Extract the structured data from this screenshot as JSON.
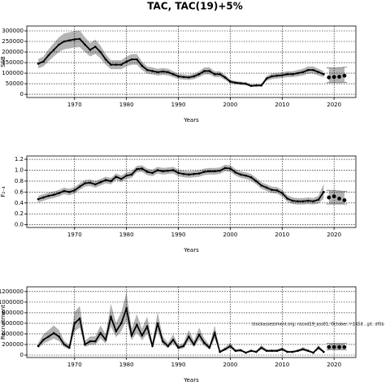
{
  "chart_data": [
    {
      "type": "line",
      "title": "TAC, TAC(19)+5%",
      "xlabel": "Years",
      "ylabel": "SSB",
      "grid": true,
      "xlim": [
        1960.8,
        2024.2
      ],
      "xticks": [
        1970,
        1980,
        1990,
        2000,
        2010,
        2020
      ],
      "ylim": [
        -15000,
        323000
      ],
      "yticks": [
        0,
        50000,
        100000,
        150000,
        200000,
        250000,
        300000
      ],
      "x": [
        1963,
        1964,
        1965,
        1966,
        1967,
        1968,
        1969,
        1970,
        1971,
        1972,
        1973,
        1974,
        1975,
        1976,
        1977,
        1978,
        1979,
        1980,
        1981,
        1982,
        1983,
        1984,
        1985,
        1986,
        1987,
        1988,
        1989,
        1990,
        1991,
        1992,
        1993,
        1994,
        1995,
        1996,
        1997,
        1998,
        1999,
        2000,
        2001,
        2002,
        2003,
        2004,
        2005,
        2006,
        2007,
        2008,
        2009,
        2010,
        2011,
        2012,
        2013,
        2014,
        2015,
        2016,
        2017,
        2018
      ],
      "values": [
        145000,
        155000,
        185000,
        210000,
        235000,
        250000,
        255000,
        260000,
        262000,
        235000,
        210000,
        225000,
        200000,
        165000,
        140000,
        140000,
        140000,
        155000,
        165000,
        165000,
        135000,
        115000,
        110000,
        105000,
        108000,
        105000,
        95000,
        85000,
        82000,
        80000,
        85000,
        95000,
        110000,
        110000,
        95000,
        95000,
        80000,
        60000,
        55000,
        52000,
        50000,
        40000,
        42000,
        42000,
        75000,
        85000,
        88000,
        90000,
        95000,
        95000,
        100000,
        105000,
        115000,
        115000,
        105000,
        95000
      ],
      "lower": [
        123000,
        132000,
        157000,
        179000,
        200000,
        213000,
        217000,
        221000,
        223000,
        200000,
        179000,
        191000,
        170000,
        140000,
        119000,
        119000,
        119000,
        132000,
        140000,
        140000,
        115000,
        98000,
        94000,
        89000,
        92000,
        89000,
        81000,
        72000,
        70000,
        68000,
        72000,
        81000,
        94000,
        94000,
        81000,
        81000,
        68000,
        51000,
        47000,
        44000,
        43000,
        34000,
        36000,
        36000,
        64000,
        72000,
        75000,
        77000,
        81000,
        81000,
        85000,
        89000,
        98000,
        98000,
        89000,
        81000
      ],
      "upper": [
        167000,
        178000,
        213000,
        242000,
        270000,
        288000,
        293000,
        299000,
        301000,
        270000,
        242000,
        259000,
        230000,
        190000,
        161000,
        161000,
        161000,
        178000,
        190000,
        190000,
        155000,
        132000,
        127000,
        121000,
        124000,
        121000,
        109000,
        98000,
        94000,
        92000,
        98000,
        109000,
        127000,
        127000,
        109000,
        109000,
        92000,
        69000,
        63000,
        60000,
        58000,
        46000,
        48000,
        48000,
        86000,
        98000,
        101000,
        104000,
        109000,
        109000,
        115000,
        121000,
        132000,
        132000,
        121000,
        109000
      ],
      "forecast": {
        "x": [
          2019,
          2020,
          2021,
          2022
        ],
        "values": [
          80000,
          82000,
          83000,
          88000
        ],
        "lower": [
          55000,
          55000,
          55000,
          56000
        ],
        "upper": [
          125000,
          125000,
          126000,
          128000
        ]
      }
    },
    {
      "type": "line",
      "xlabel": "Years",
      "ylabel": "F₂₋₄",
      "grid": true,
      "xlim": [
        1960.8,
        2024.2
      ],
      "xticks": [
        1970,
        1980,
        1990,
        2000,
        2010,
        2020
      ],
      "ylim": [
        -0.05,
        1.26
      ],
      "yticks": [
        {
          "value": 0,
          "label": "0.0"
        },
        0.2,
        0.4,
        0.6,
        0.8,
        {
          "value": 1,
          "label": "1.0"
        },
        1.2
      ],
      "x": [
        1963,
        1964,
        1965,
        1966,
        1967,
        1968,
        1969,
        1970,
        1971,
        1972,
        1973,
        1974,
        1975,
        1976,
        1977,
        1978,
        1979,
        1980,
        1981,
        1982,
        1983,
        1984,
        1985,
        1986,
        1987,
        1988,
        1989,
        1990,
        1991,
        1992,
        1993,
        1994,
        1995,
        1996,
        1997,
        1998,
        1999,
        2000,
        2001,
        2002,
        2003,
        2004,
        2005,
        2006,
        2007,
        2008,
        2009,
        2010,
        2011,
        2012,
        2013,
        2014,
        2015,
        2016,
        2017,
        2018
      ],
      "values": [
        0.47,
        0.5,
        0.53,
        0.55,
        0.58,
        0.62,
        0.6,
        0.63,
        0.7,
        0.76,
        0.77,
        0.74,
        0.78,
        0.82,
        0.8,
        0.88,
        0.84,
        0.9,
        0.92,
        1.02,
        1.03,
        0.97,
        0.95,
        1.0,
        0.98,
        0.99,
        1.0,
        0.95,
        0.93,
        0.92,
        0.93,
        0.94,
        0.97,
        0.98,
        0.98,
        0.99,
        1.04,
        1.03,
        0.96,
        0.92,
        0.9,
        0.87,
        0.8,
        0.72,
        0.68,
        0.64,
        0.63,
        0.58,
        0.48,
        0.44,
        0.43,
        0.43,
        0.44,
        0.43,
        0.46,
        0.6
      ],
      "lower": [
        0.41,
        0.44,
        0.47,
        0.49,
        0.52,
        0.56,
        0.54,
        0.57,
        0.64,
        0.7,
        0.71,
        0.68,
        0.72,
        0.76,
        0.74,
        0.82,
        0.78,
        0.84,
        0.86,
        0.96,
        0.97,
        0.91,
        0.89,
        0.94,
        0.92,
        0.93,
        0.94,
        0.89,
        0.87,
        0.86,
        0.87,
        0.88,
        0.91,
        0.92,
        0.92,
        0.93,
        0.98,
        0.97,
        0.9,
        0.86,
        0.84,
        0.81,
        0.74,
        0.66,
        0.62,
        0.58,
        0.57,
        0.52,
        0.42,
        0.38,
        0.37,
        0.37,
        0.38,
        0.37,
        0.39,
        0.48
      ],
      "upper": [
        0.53,
        0.56,
        0.59,
        0.61,
        0.64,
        0.68,
        0.66,
        0.69,
        0.76,
        0.82,
        0.83,
        0.8,
        0.84,
        0.88,
        0.86,
        0.94,
        0.9,
        0.96,
        0.98,
        1.08,
        1.09,
        1.03,
        1.01,
        1.06,
        1.04,
        1.05,
        1.06,
        1.01,
        0.99,
        0.98,
        0.99,
        1.0,
        1.03,
        1.04,
        1.04,
        1.05,
        1.1,
        1.09,
        1.02,
        0.98,
        0.96,
        0.93,
        0.86,
        0.78,
        0.74,
        0.7,
        0.69,
        0.64,
        0.54,
        0.5,
        0.49,
        0.49,
        0.5,
        0.49,
        0.53,
        0.75
      ],
      "forecast": {
        "x": [
          2019,
          2020,
          2021,
          2022
        ],
        "values": [
          0.5,
          0.52,
          0.48,
          0.45
        ],
        "lower": [
          0.38,
          0.38,
          0.38,
          0.38
        ],
        "upper": [
          0.63,
          0.63,
          0.62,
          0.61
        ]
      }
    },
    {
      "type": "line",
      "xlabel": "Years",
      "ylabel": "Recruitment",
      "grid": true,
      "annotation": "stockassessment.org, nscod19_ass01, October, r:1458 , git: df0b",
      "xlim": [
        1960.8,
        2024.2
      ],
      "xticks": [
        1970,
        1980,
        1990,
        2000,
        2010,
        2020
      ],
      "ylim": [
        -46000,
        1290000
      ],
      "yticks": [
        0,
        200000,
        400000,
        600000,
        800000,
        1000000,
        1200000
      ],
      "x": [
        1963,
        1964,
        1965,
        1966,
        1967,
        1968,
        1969,
        1970,
        1971,
        1972,
        1973,
        1974,
        1975,
        1976,
        1977,
        1978,
        1979,
        1980,
        1981,
        1982,
        1983,
        1984,
        1985,
        1986,
        1987,
        1988,
        1989,
        1990,
        1991,
        1992,
        1993,
        1994,
        1995,
        1996,
        1997,
        1998,
        1999,
        2000,
        2001,
        2002,
        2003,
        2004,
        2005,
        2006,
        2007,
        2008,
        2009,
        2010,
        2011,
        2012,
        2013,
        2014,
        2015,
        2016,
        2017,
        2018
      ],
      "values": [
        170000,
        290000,
        350000,
        415000,
        350000,
        200000,
        140000,
        600000,
        690000,
        200000,
        260000,
        260000,
        415000,
        290000,
        720000,
        450000,
        600000,
        880000,
        370000,
        570000,
        370000,
        540000,
        170000,
        600000,
        260000,
        170000,
        290000,
        140000,
        170000,
        350000,
        200000,
        385000,
        230000,
        140000,
        415000,
        60000,
        110000,
        170000,
        80000,
        90000,
        45000,
        80000,
        60000,
        140000,
        80000,
        80000,
        80000,
        110000,
        60000,
        60000,
        80000,
        110000,
        80000,
        45000,
        140000,
        60000
      ],
      "lower": [
        128000,
        218000,
        263000,
        311000,
        263000,
        150000,
        105000,
        450000,
        518000,
        150000,
        195000,
        195000,
        311000,
        218000,
        540000,
        338000,
        450000,
        660000,
        278000,
        428000,
        278000,
        405000,
        128000,
        450000,
        195000,
        128000,
        218000,
        105000,
        128000,
        263000,
        150000,
        289000,
        173000,
        105000,
        311000,
        45000,
        83000,
        128000,
        60000,
        68000,
        34000,
        60000,
        45000,
        105000,
        60000,
        60000,
        60000,
        83000,
        45000,
        45000,
        60000,
        83000,
        60000,
        34000,
        105000,
        45000
      ],
      "upper": [
        230000,
        392000,
        473000,
        560000,
        473000,
        270000,
        189000,
        810000,
        932000,
        270000,
        351000,
        351000,
        560000,
        392000,
        972000,
        608000,
        810000,
        1188000,
        500000,
        770000,
        500000,
        729000,
        230000,
        810000,
        351000,
        230000,
        392000,
        189000,
        230000,
        473000,
        270000,
        520000,
        311000,
        189000,
        560000,
        81000,
        149000,
        230000,
        108000,
        122000,
        61000,
        108000,
        81000,
        189000,
        108000,
        108000,
        108000,
        149000,
        81000,
        81000,
        108000,
        149000,
        108000,
        61000,
        189000,
        81000
      ],
      "forecast": {
        "x": [
          2019,
          2020,
          2021,
          2022
        ],
        "values": [
          150000,
          150000,
          150000,
          150000
        ],
        "lower": [
          100000,
          100000,
          100000,
          100000
        ],
        "upper": [
          220000,
          220000,
          220000,
          220000
        ]
      }
    }
  ]
}
